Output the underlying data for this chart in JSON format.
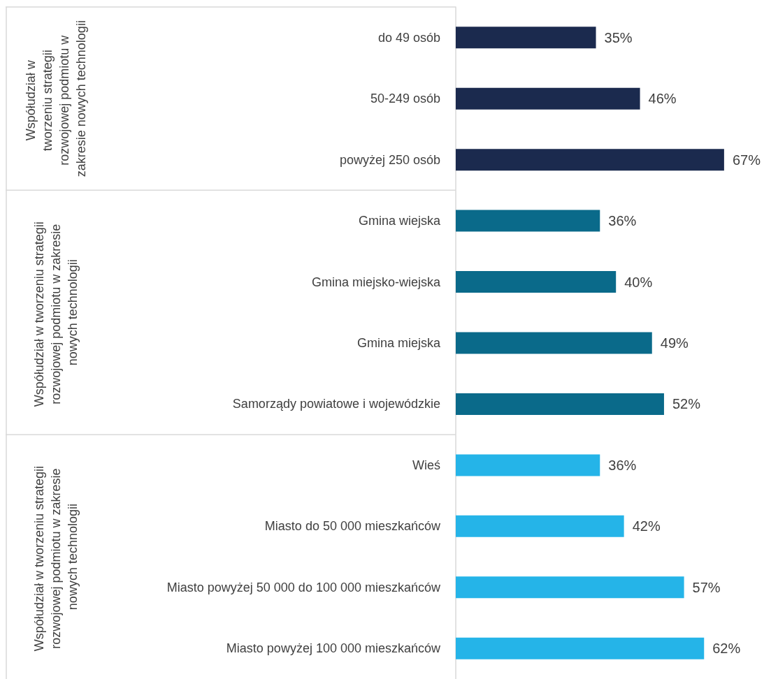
{
  "chart_data": {
    "type": "bar",
    "orientation": "horizontal",
    "categories": [
      "do 49 osób",
      "50-249 osób",
      "powyżej 250 osób",
      "Gmina wiejska",
      "Gmina miejsko-wiejska",
      "Gmina miejska",
      "Samorządy powiatowe i wojewódzkie",
      "Wieś",
      "Miasto do 50 000 mieszkańców",
      "Miasto powyżej 50 000 do 100 000 mieszkańców",
      "Miasto powyżej 100 000 mieszkańców"
    ],
    "values": [
      35,
      46,
      67,
      36,
      40,
      49,
      52,
      36,
      42,
      57,
      62
    ],
    "value_labels": [
      "35%",
      "46%",
      "67%",
      "36%",
      "40%",
      "49%",
      "52%",
      "36%",
      "42%",
      "57%",
      "62%"
    ],
    "colors": [
      "#1b2a4e",
      "#1b2a4e",
      "#1b2a4e",
      "#0a6a8a",
      "#0a6a8a",
      "#0a6a8a",
      "#0a6a8a",
      "#25b4e8",
      "#25b4e8",
      "#25b4e8",
      "#25b4e8"
    ],
    "annotations": [
      "Współudział w tworzeniu strategii rozwojowej podmiotu w zakresie nowych technologii",
      "Współudział w tworzeniu strategii rozwojowej podmiotu w zakresie nowych technologii",
      "Współudział w tworzeniu strategii rozwojowej podmiotu w zakresie nowych technologii"
    ],
    "data_labels": false
  }
}
